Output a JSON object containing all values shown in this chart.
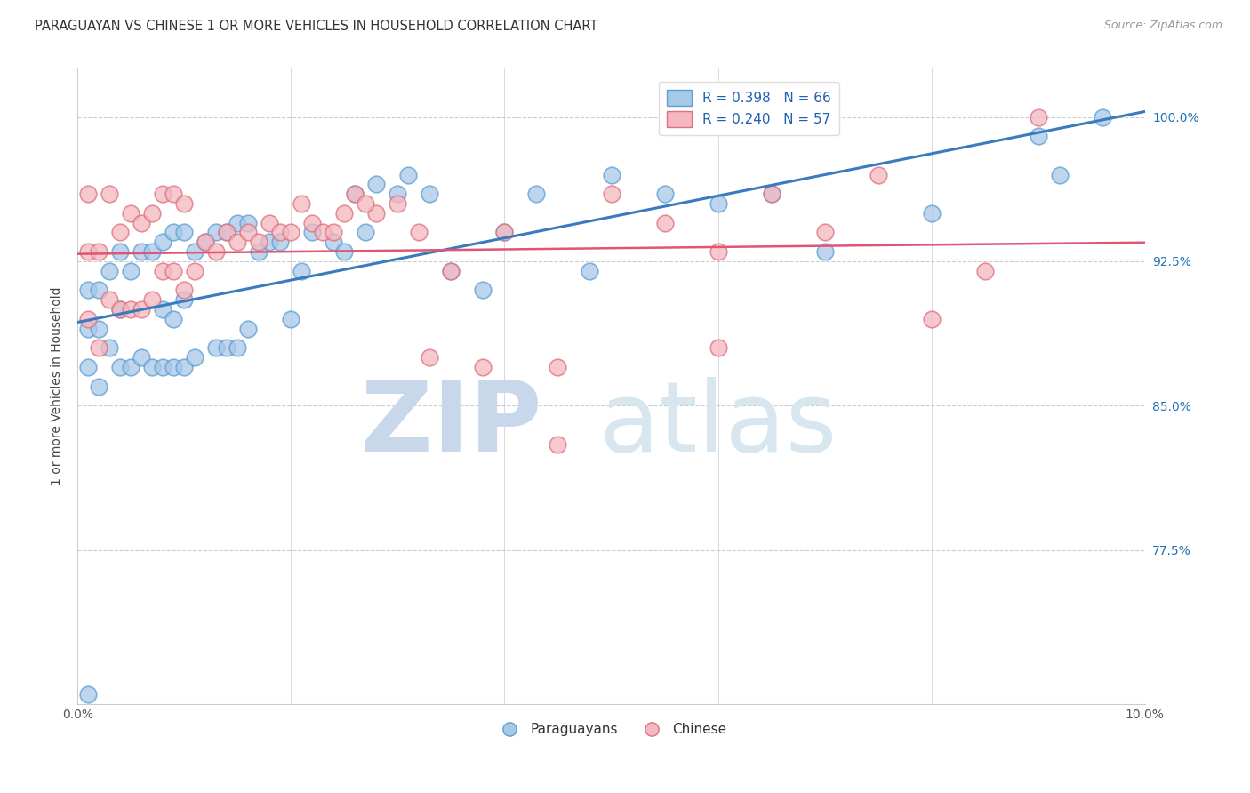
{
  "title": "PARAGUAYAN VS CHINESE 1 OR MORE VEHICLES IN HOUSEHOLD CORRELATION CHART",
  "source": "Source: ZipAtlas.com",
  "ylabel": "1 or more Vehicles in Household",
  "ytick_labels": [
    "100.0%",
    "92.5%",
    "85.0%",
    "77.5%"
  ],
  "ytick_values": [
    1.0,
    0.925,
    0.85,
    0.775
  ],
  "watermark_zip": "ZIP",
  "watermark_atlas": "atlas",
  "legend_blue_label": "R = 0.398   N = 66",
  "legend_pink_label": "R = 0.240   N = 57",
  "legend_foot_blue": "Paraguayans",
  "legend_foot_pink": "Chinese",
  "blue_fill": "#a8c8e8",
  "blue_edge": "#5b9fd4",
  "pink_fill": "#f4b8c0",
  "pink_edge": "#e07080",
  "blue_line": "#3a7abf",
  "pink_line": "#e05575",
  "xmin": 0.0,
  "xmax": 0.1,
  "ymin": 0.695,
  "ymax": 1.025,
  "blue_x": [
    0.001,
    0.001,
    0.001,
    0.001,
    0.002,
    0.002,
    0.002,
    0.003,
    0.003,
    0.004,
    0.004,
    0.004,
    0.005,
    0.005,
    0.006,
    0.006,
    0.007,
    0.007,
    0.008,
    0.008,
    0.008,
    0.009,
    0.009,
    0.009,
    0.01,
    0.01,
    0.01,
    0.011,
    0.011,
    0.012,
    0.013,
    0.013,
    0.014,
    0.014,
    0.015,
    0.015,
    0.016,
    0.016,
    0.017,
    0.018,
    0.019,
    0.02,
    0.021,
    0.022,
    0.024,
    0.025,
    0.026,
    0.027,
    0.028,
    0.03,
    0.031,
    0.033,
    0.035,
    0.038,
    0.04,
    0.043,
    0.048,
    0.05,
    0.055,
    0.06,
    0.065,
    0.07,
    0.08,
    0.09,
    0.092,
    0.096
  ],
  "blue_y": [
    0.87,
    0.89,
    0.91,
    0.7,
    0.86,
    0.89,
    0.91,
    0.88,
    0.92,
    0.87,
    0.9,
    0.93,
    0.87,
    0.92,
    0.875,
    0.93,
    0.87,
    0.93,
    0.87,
    0.9,
    0.935,
    0.87,
    0.895,
    0.94,
    0.87,
    0.905,
    0.94,
    0.875,
    0.93,
    0.935,
    0.88,
    0.94,
    0.88,
    0.94,
    0.88,
    0.945,
    0.89,
    0.945,
    0.93,
    0.935,
    0.935,
    0.895,
    0.92,
    0.94,
    0.935,
    0.93,
    0.96,
    0.94,
    0.965,
    0.96,
    0.97,
    0.96,
    0.92,
    0.91,
    0.94,
    0.96,
    0.92,
    0.97,
    0.96,
    0.955,
    0.96,
    0.93,
    0.95,
    0.99,
    0.97,
    1.0
  ],
  "pink_x": [
    0.001,
    0.001,
    0.001,
    0.002,
    0.002,
    0.003,
    0.003,
    0.004,
    0.004,
    0.005,
    0.005,
    0.006,
    0.006,
    0.007,
    0.007,
    0.008,
    0.008,
    0.009,
    0.009,
    0.01,
    0.01,
    0.011,
    0.012,
    0.013,
    0.014,
    0.015,
    0.016,
    0.017,
    0.018,
    0.019,
    0.02,
    0.021,
    0.022,
    0.023,
    0.024,
    0.025,
    0.026,
    0.028,
    0.03,
    0.032,
    0.035,
    0.038,
    0.04,
    0.045,
    0.05,
    0.055,
    0.06,
    0.065,
    0.07,
    0.075,
    0.08,
    0.085,
    0.09,
    0.027,
    0.033,
    0.045,
    0.06
  ],
  "pink_y": [
    0.895,
    0.93,
    0.96,
    0.88,
    0.93,
    0.905,
    0.96,
    0.9,
    0.94,
    0.9,
    0.95,
    0.9,
    0.945,
    0.905,
    0.95,
    0.92,
    0.96,
    0.92,
    0.96,
    0.91,
    0.955,
    0.92,
    0.935,
    0.93,
    0.94,
    0.935,
    0.94,
    0.935,
    0.945,
    0.94,
    0.94,
    0.955,
    0.945,
    0.94,
    0.94,
    0.95,
    0.96,
    0.95,
    0.955,
    0.94,
    0.92,
    0.87,
    0.94,
    0.83,
    0.96,
    0.945,
    0.93,
    0.96,
    0.94,
    0.97,
    0.895,
    0.92,
    1.0,
    0.955,
    0.875,
    0.87,
    0.88
  ]
}
